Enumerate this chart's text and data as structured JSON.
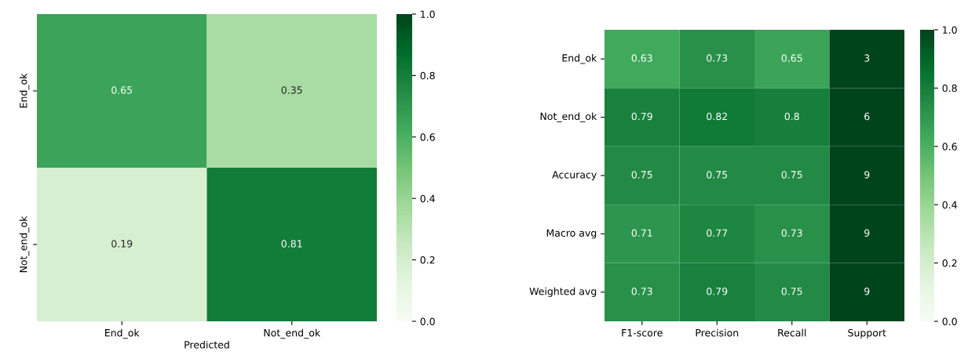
{
  "chart_data": [
    {
      "type": "heatmap",
      "xlabel": "Predicted",
      "categories": [
        "End_ok",
        "Not_end_ok"
      ],
      "y_categories": [
        "End_ok",
        "Not_end_ok"
      ],
      "cells": [
        [
          0.65,
          0.35
        ],
        [
          0.19,
          0.81
        ]
      ],
      "clim": [
        0.0,
        1.0
      ],
      "cticks": [
        {
          "value": 0.0,
          "label": "0.0"
        },
        {
          "value": 0.2,
          "label": "0.2"
        },
        {
          "value": 0.4,
          "label": "0.4"
        },
        {
          "value": 0.6,
          "label": "0.6"
        },
        {
          "value": 0.8,
          "label": "0.8"
        },
        {
          "value": 1.0,
          "label": "1.0"
        }
      ],
      "data_labels": true
    },
    {
      "type": "heatmap",
      "categories": [
        "F1-score",
        "Precision",
        "Recall",
        "Support"
      ],
      "y_categories": [
        "End_ok",
        "Not_end_ok",
        "Accuracy",
        "Macro avg",
        "Weighted avg"
      ],
      "cells": [
        [
          0.63,
          0.73,
          0.65,
          3
        ],
        [
          0.79,
          0.82,
          0.8,
          6
        ],
        [
          0.75,
          0.75,
          0.75,
          9
        ],
        [
          0.71,
          0.77,
          0.73,
          9
        ],
        [
          0.73,
          0.79,
          0.75,
          9
        ]
      ],
      "clim": [
        0.0,
        1.0
      ],
      "cticks": [
        {
          "value": 0.0,
          "label": "0.0"
        },
        {
          "value": 0.2,
          "label": "0.2"
        },
        {
          "value": 0.4,
          "label": "0.4"
        },
        {
          "value": 0.6,
          "label": "0.6"
        },
        {
          "value": 0.8,
          "label": "0.8"
        },
        {
          "value": 1.0,
          "label": "1.0"
        }
      ],
      "data_labels": true
    }
  ]
}
